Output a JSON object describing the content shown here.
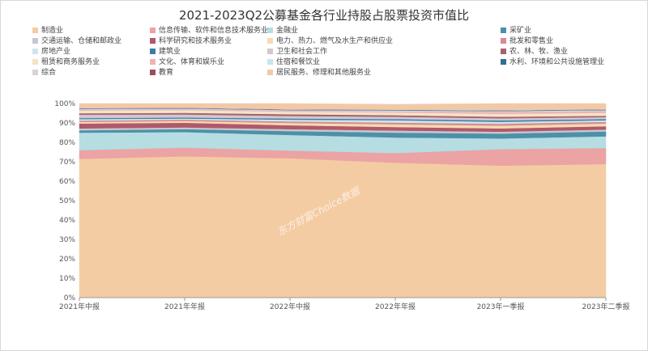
{
  "chart_data": {
    "type": "area",
    "stacked": true,
    "title": "2021-2023Q2公募基金各行业持股占股票投资市值比",
    "x": [
      "2021年中报",
      "2021年年报",
      "2022年中报",
      "2022年年报",
      "2023年一季报",
      "2023年二季报"
    ],
    "yticks": [
      "0%",
      "10%",
      "20%",
      "30%",
      "40%",
      "50%",
      "60%",
      "70%",
      "80%",
      "90%",
      "100%"
    ],
    "ylim": [
      0,
      100
    ],
    "legend_position": "top",
    "watermark": "东方财富Choice数据",
    "series": [
      {
        "name": "制造业",
        "color": "#f4cca4",
        "values": [
          71.5,
          72.8,
          71.8,
          69.5,
          68.0,
          68.8
        ]
      },
      {
        "name": "信息传输、软件和信息技术服务业",
        "color": "#eba3a3",
        "values": [
          4.5,
          4.5,
          4.0,
          5.0,
          8.5,
          8.3
        ]
      },
      {
        "name": "金融业",
        "color": "#b5dde2",
        "values": [
          9.0,
          8.0,
          8.0,
          8.0,
          5.5,
          6.0
        ]
      },
      {
        "name": "采矿业",
        "color": "#4d90a8",
        "values": [
          1.2,
          1.5,
          2.0,
          2.5,
          2.5,
          2.5
        ]
      },
      {
        "name": "交通运输、仓储和邮政业",
        "color": "#c7c7cc",
        "values": [
          1.0,
          0.9,
          1.0,
          1.1,
          1.0,
          1.0
        ]
      },
      {
        "name": "科学研究和技术服务业",
        "color": "#b0596b",
        "values": [
          2.5,
          2.4,
          2.0,
          1.8,
          1.7,
          1.7
        ]
      },
      {
        "name": "电力、热力、燃气及水生产和供应业",
        "color": "#f6dab0",
        "values": [
          0.8,
          0.9,
          1.2,
          1.4,
          1.4,
          1.4
        ]
      },
      {
        "name": "批发和零售业",
        "color": "#d98b94",
        "values": [
          0.7,
          0.7,
          0.8,
          0.9,
          1.0,
          0.9
        ]
      },
      {
        "name": "房地产业",
        "color": "#cfe5ea",
        "values": [
          0.8,
          0.6,
          0.9,
          1.2,
          1.0,
          0.8
        ]
      },
      {
        "name": "建筑业",
        "color": "#3b7ea6",
        "values": [
          0.5,
          0.5,
          0.6,
          0.6,
          0.7,
          0.6
        ]
      },
      {
        "name": "卫生和社会工作",
        "color": "#d2c7cf",
        "values": [
          1.8,
          1.6,
          1.3,
          1.2,
          1.1,
          1.0
        ]
      },
      {
        "name": "农、林、牧、渔业",
        "color": "#a96070",
        "values": [
          0.7,
          0.8,
          0.9,
          0.8,
          0.8,
          0.7
        ]
      },
      {
        "name": "租赁和商务服务业",
        "color": "#f3e4c6",
        "values": [
          1.4,
          1.4,
          1.3,
          1.4,
          1.5,
          1.5
        ]
      },
      {
        "name": "文化、体育和娱乐业",
        "color": "#eeb3b7",
        "values": [
          0.5,
          0.5,
          0.5,
          0.6,
          1.0,
          1.0
        ]
      },
      {
        "name": "住宿和餐饮业",
        "color": "#c6e6ef",
        "values": [
          0.3,
          0.3,
          0.3,
          0.4,
          0.4,
          0.4
        ]
      },
      {
        "name": "水利、环境和公共设施管理业",
        "color": "#2f6f93",
        "values": [
          0.2,
          0.2,
          0.2,
          0.2,
          0.2,
          0.2
        ]
      },
      {
        "name": "综合",
        "color": "#d9d3d6",
        "values": [
          0.1,
          0.1,
          0.1,
          0.1,
          0.1,
          0.1
        ]
      },
      {
        "name": "教育",
        "color": "#9a4f5e",
        "values": [
          0.1,
          0.1,
          0.1,
          0.1,
          0.1,
          0.1
        ]
      },
      {
        "name": "居民服务、修理和其他服务业",
        "color": "#f2c9a8",
        "values": [
          2.4,
          2.2,
          3.0,
          2.8,
          3.5,
          3.0
        ]
      }
    ]
  }
}
